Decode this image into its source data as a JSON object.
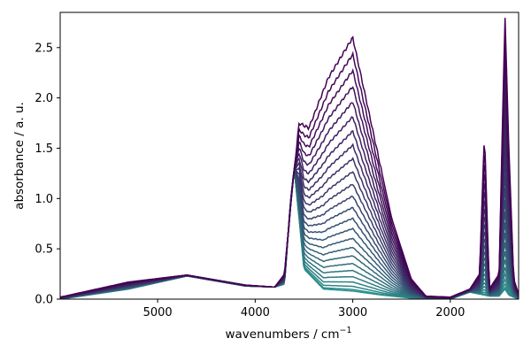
{
  "chart_data": {
    "type": "line",
    "xlabel": "wavenumbers / cm",
    "xlabel_superscript": "−1",
    "ylabel": "absorbance / a. u.",
    "xlim": [
      5999,
      1300
    ],
    "ylim": [
      0,
      2.85
    ],
    "x_ticks": [
      5000,
      4000,
      3000,
      2000
    ],
    "y_ticks": [
      0.0,
      0.5,
      1.0,
      1.5,
      2.0,
      2.5
    ],
    "x_tick_labels": [
      "5000",
      "4000",
      "3000",
      "2000"
    ],
    "y_tick_labels": [
      "0.0",
      "0.5",
      "1.0",
      "1.5",
      "2.0",
      "2.5"
    ],
    "grid": false,
    "legend": "none",
    "colormap": "viridis (dark purple to teal)",
    "color_start": "#440154",
    "color_end": "#2a928c",
    "series_count": 25,
    "shape_keypoints": {
      "note": "Representative absorbance values (data units) for the strongest and weakest traces",
      "strongest": {
        "x": [
          5999,
          5300,
          4700,
          4100,
          3800,
          3700,
          3620,
          3550,
          3450,
          3250,
          3000,
          2800,
          2600,
          2400,
          2250,
          2000,
          1800,
          1700,
          1650,
          1600,
          1500,
          1440,
          1400,
          1350,
          1300
        ],
        "y": [
          0.02,
          0.17,
          0.24,
          0.14,
          0.12,
          0.25,
          1.1,
          1.75,
          1.7,
          2.2,
          2.6,
          1.7,
          0.8,
          0.2,
          0.03,
          0.02,
          0.1,
          0.25,
          1.67,
          0.1,
          0.25,
          2.83,
          1.5,
          0.2,
          0.05
        ]
      },
      "weakest": {
        "x": [
          5999,
          5300,
          4700,
          4100,
          3800,
          3700,
          3640,
          3600,
          3500,
          3300,
          3000,
          2700,
          2400,
          2200,
          2000,
          1800,
          1700,
          1600,
          1500,
          1440,
          1400,
          1300
        ],
        "y": [
          0.0,
          0.1,
          0.23,
          0.13,
          0.12,
          0.15,
          0.95,
          1.3,
          0.3,
          0.1,
          0.08,
          0.04,
          0.01,
          0.0,
          0.0,
          0.07,
          0.05,
          0.03,
          0.03,
          0.1,
          0.04,
          0.0
        ]
      }
    }
  }
}
